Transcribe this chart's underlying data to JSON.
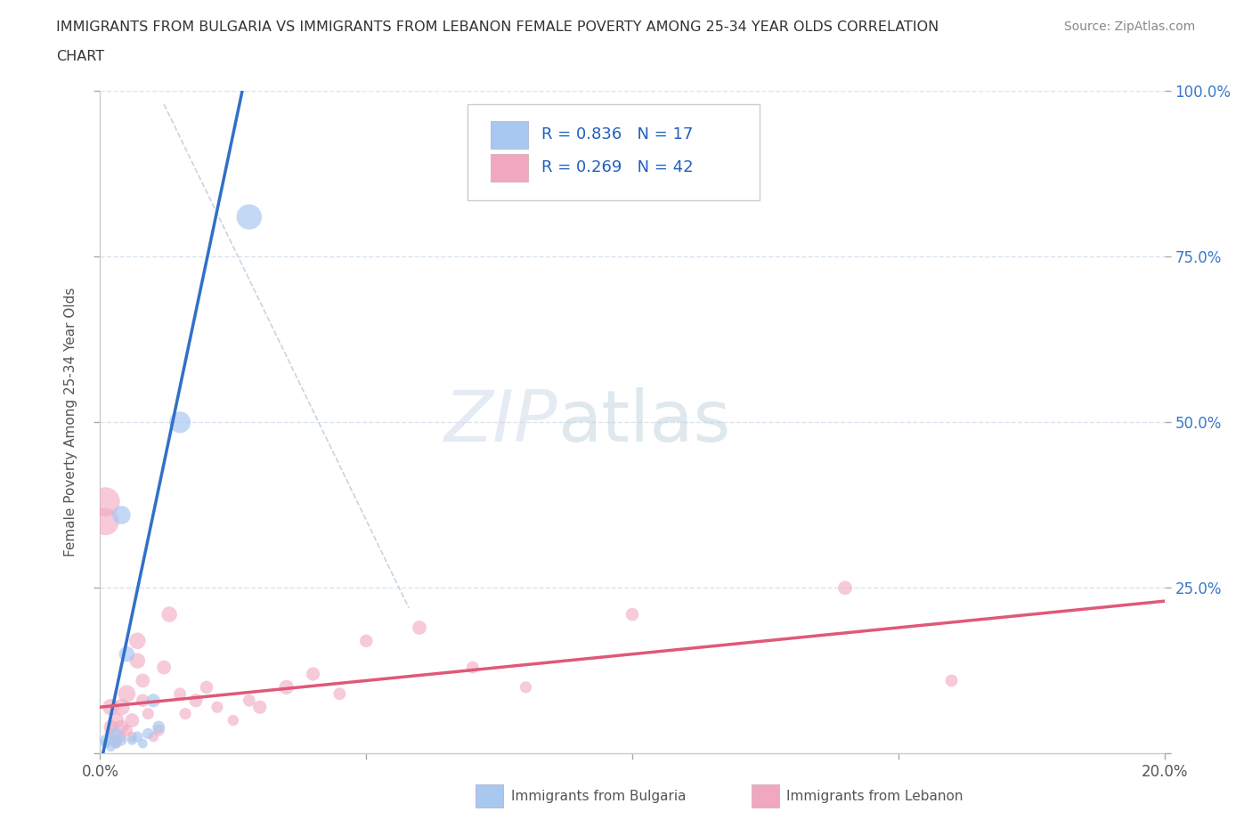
{
  "title_line1": "IMMIGRANTS FROM BULGARIA VS IMMIGRANTS FROM LEBANON FEMALE POVERTY AMONG 25-34 YEAR OLDS CORRELATION",
  "title_line2": "CHART",
  "source": "Source: ZipAtlas.com",
  "ylabel": "Female Poverty Among 25-34 Year Olds",
  "watermark_zip": "ZIP",
  "watermark_atlas": "atlas",
  "bg_color": "#ffffff",
  "plot_bg_color": "#ffffff",
  "grid_color": "#d8e4f0",
  "bulgaria_color": "#a8c8f0",
  "lebanon_color": "#f0a8c0",
  "trendline_bulgaria_color": "#3070c8",
  "trendline_lebanon_color": "#e05878",
  "diagonal_color": "#c8d4e0",
  "legend_r_bulgaria": "R = 0.836",
  "legend_n_bulgaria": "N = 17",
  "legend_r_lebanon": "R = 0.269",
  "legend_n_lebanon": "N = 42",
  "xlim": [
    0.0,
    0.2
  ],
  "ylim": [
    0.0,
    1.0
  ],
  "bulgaria_trendline": [
    0.0,
    -0.02,
    0.028,
    1.05
  ],
  "lebanon_trendline": [
    0.0,
    0.07,
    0.2,
    0.23
  ],
  "diagonal_line": [
    0.012,
    0.98,
    0.058,
    0.22
  ],
  "bulgaria_points": [
    [
      0.001,
      0.02
    ],
    [
      0.001,
      0.015
    ],
    [
      0.002,
      0.01
    ],
    [
      0.002,
      0.02
    ],
    [
      0.003,
      0.03
    ],
    [
      0.003,
      0.015
    ],
    [
      0.004,
      0.02
    ],
    [
      0.004,
      0.36
    ],
    [
      0.005,
      0.15
    ],
    [
      0.006,
      0.02
    ],
    [
      0.007,
      0.025
    ],
    [
      0.008,
      0.015
    ],
    [
      0.009,
      0.03
    ],
    [
      0.01,
      0.08
    ],
    [
      0.011,
      0.04
    ],
    [
      0.015,
      0.5
    ],
    [
      0.028,
      0.81
    ]
  ],
  "lebanon_points": [
    [
      0.001,
      0.38
    ],
    [
      0.001,
      0.35
    ],
    [
      0.002,
      0.07
    ],
    [
      0.002,
      0.04
    ],
    [
      0.002,
      0.03
    ],
    [
      0.003,
      0.05
    ],
    [
      0.003,
      0.02
    ],
    [
      0.003,
      0.015
    ],
    [
      0.004,
      0.04
    ],
    [
      0.004,
      0.07
    ],
    [
      0.004,
      0.025
    ],
    [
      0.005,
      0.09
    ],
    [
      0.005,
      0.035
    ],
    [
      0.006,
      0.025
    ],
    [
      0.006,
      0.05
    ],
    [
      0.007,
      0.17
    ],
    [
      0.007,
      0.14
    ],
    [
      0.008,
      0.11
    ],
    [
      0.008,
      0.08
    ],
    [
      0.009,
      0.06
    ],
    [
      0.01,
      0.025
    ],
    [
      0.011,
      0.035
    ],
    [
      0.012,
      0.13
    ],
    [
      0.013,
      0.21
    ],
    [
      0.015,
      0.09
    ],
    [
      0.016,
      0.06
    ],
    [
      0.018,
      0.08
    ],
    [
      0.02,
      0.1
    ],
    [
      0.022,
      0.07
    ],
    [
      0.025,
      0.05
    ],
    [
      0.028,
      0.08
    ],
    [
      0.03,
      0.07
    ],
    [
      0.035,
      0.1
    ],
    [
      0.04,
      0.12
    ],
    [
      0.045,
      0.09
    ],
    [
      0.05,
      0.17
    ],
    [
      0.06,
      0.19
    ],
    [
      0.07,
      0.13
    ],
    [
      0.08,
      0.1
    ],
    [
      0.1,
      0.21
    ],
    [
      0.14,
      0.25
    ],
    [
      0.16,
      0.11
    ]
  ],
  "bulgaria_sizes": [
    80,
    60,
    60,
    80,
    100,
    60,
    80,
    220,
    160,
    60,
    80,
    60,
    80,
    120,
    100,
    300,
    420
  ],
  "lebanon_sizes": [
    550,
    480,
    180,
    130,
    100,
    160,
    90,
    70,
    130,
    180,
    70,
    200,
    90,
    70,
    130,
    180,
    160,
    130,
    110,
    90,
    70,
    90,
    130,
    160,
    100,
    90,
    120,
    110,
    90,
    80,
    100,
    120,
    140,
    120,
    100,
    110,
    130,
    100,
    90,
    110,
    130,
    100
  ]
}
